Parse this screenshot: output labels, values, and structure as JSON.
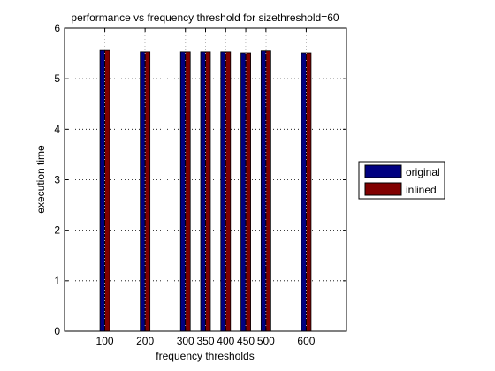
{
  "chart_data": {
    "type": "bar",
    "title": "performance vs frequency threshold for sizethreshold=60",
    "xlabel": "frequency thresholds",
    "ylabel": "execution time",
    "x": [
      100,
      200,
      300,
      350,
      400,
      450,
      500,
      600
    ],
    "x_tick_labels": [
      "100",
      "200",
      "300",
      "350",
      "400",
      "450",
      "500",
      "600"
    ],
    "xlim": [
      0,
      700
    ],
    "ylim": [
      0,
      6
    ],
    "y_ticks": [
      0,
      1,
      2,
      3,
      4,
      5,
      6
    ],
    "y_tick_labels": [
      "0",
      "1",
      "2",
      "3",
      "4",
      "5",
      "6"
    ],
    "grid": true,
    "legend_position": "right-outside",
    "series": [
      {
        "name": "original",
        "color": "#000080",
        "values": [
          5.56,
          5.53,
          5.53,
          5.53,
          5.53,
          5.51,
          5.55,
          5.51
        ]
      },
      {
        "name": "inlined",
        "color": "#800000",
        "values": [
          5.56,
          5.53,
          5.53,
          5.53,
          5.53,
          5.51,
          5.55,
          5.51
        ]
      }
    ]
  }
}
